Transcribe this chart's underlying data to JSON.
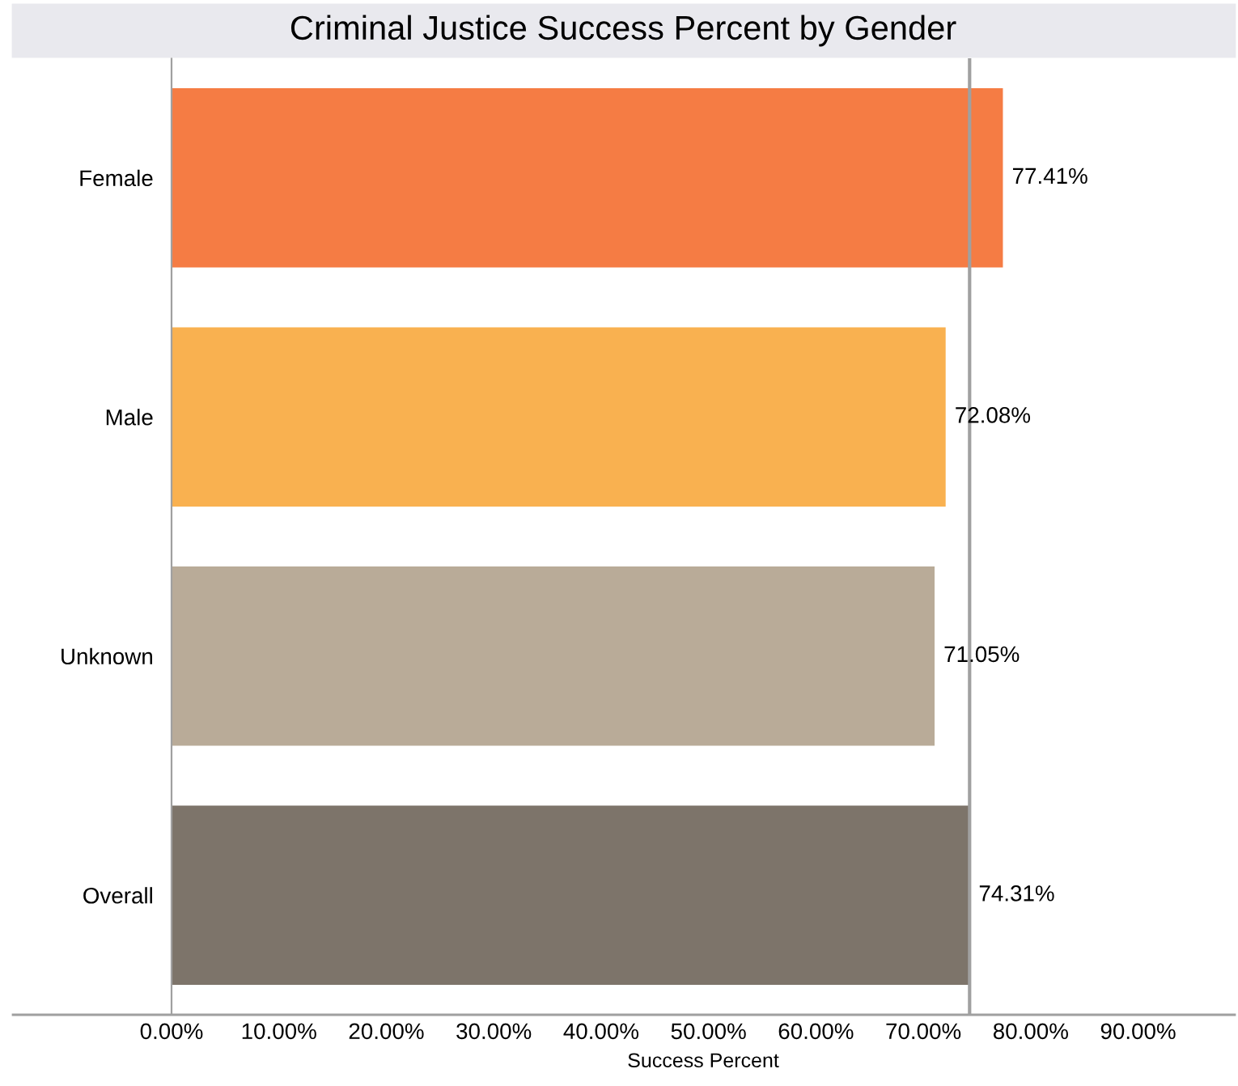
{
  "chart_data": {
    "type": "bar",
    "orientation": "horizontal",
    "title": "Criminal Justice Success Percent by Gender",
    "xlabel": "Success Percent",
    "categories": [
      "Female",
      "Male",
      "Unknown",
      "Overall"
    ],
    "values": [
      77.41,
      72.08,
      71.05,
      74.31
    ],
    "colors": [
      "#f57c44",
      "#f9b150",
      "#b9ab98",
      "#7d746a"
    ],
    "value_labels": [
      "77.41%",
      "72.08%",
      "71.05%",
      "74.31%"
    ],
    "xlim": [
      0,
      99
    ],
    "xticks": [
      {
        "value": 0,
        "label": "0.00%"
      },
      {
        "value": 10,
        "label": "10.00%"
      },
      {
        "value": 20,
        "label": "20.00%"
      },
      {
        "value": 30,
        "label": "30.00%"
      },
      {
        "value": 40,
        "label": "40.00%"
      },
      {
        "value": 50,
        "label": "50.00%"
      },
      {
        "value": 60,
        "label": "60.00%"
      },
      {
        "value": 70,
        "label": "70.00%"
      },
      {
        "value": 80,
        "label": "80.00%"
      },
      {
        "value": 90,
        "label": "90.00%"
      }
    ],
    "ref_lines": [
      {
        "axis": "x",
        "value": 74.31,
        "color": "#a0a0a0"
      }
    ],
    "grid": false
  }
}
